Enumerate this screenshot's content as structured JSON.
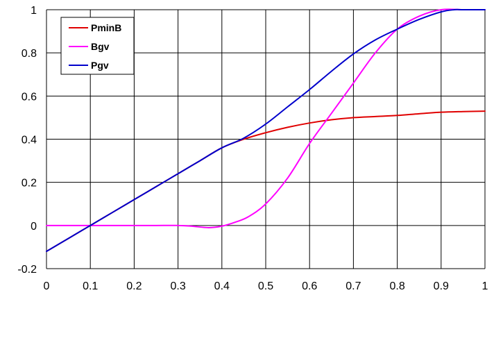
{
  "chart_data": {
    "type": "line",
    "title": "",
    "xlabel": "",
    "ylabel": "",
    "xlim": [
      0,
      1
    ],
    "ylim": [
      -0.2,
      1
    ],
    "grid": true,
    "legend_position": "top-left",
    "x_ticks": [
      "0",
      "0.1",
      "0.2",
      "0.3",
      "0.4",
      "0.5",
      "0.6",
      "0.7",
      "0.8",
      "0.9",
      "1"
    ],
    "y_ticks": [
      "-0.2",
      "0",
      "0.2",
      "0.4",
      "0.6",
      "0.8",
      "1"
    ],
    "series": [
      {
        "name": "PminB",
        "color": "#e00000",
        "x": [
          0,
          0.05,
          0.1,
          0.15,
          0.2,
          0.25,
          0.3,
          0.35,
          0.4,
          0.45,
          0.5,
          0.55,
          0.6,
          0.65,
          0.7,
          0.75,
          0.8,
          0.85,
          0.9,
          0.95,
          1.0
        ],
        "y": [
          -0.12,
          -0.06,
          0.0,
          0.06,
          0.12,
          0.18,
          0.24,
          0.3,
          0.36,
          0.4,
          0.43,
          0.455,
          0.475,
          0.49,
          0.5,
          0.505,
          0.51,
          0.518,
          0.525,
          0.528,
          0.53
        ]
      },
      {
        "name": "Bgv",
        "color": "#ff00ff",
        "x": [
          0,
          0.05,
          0.1,
          0.15,
          0.2,
          0.25,
          0.3,
          0.33,
          0.37,
          0.4,
          0.43,
          0.46,
          0.5,
          0.55,
          0.6,
          0.65,
          0.7,
          0.75,
          0.8,
          0.85,
          0.9,
          0.95,
          1.0
        ],
        "y": [
          0,
          0,
          0,
          0,
          0,
          0,
          0,
          -0.003,
          -0.01,
          -0.003,
          0.015,
          0.04,
          0.1,
          0.22,
          0.38,
          0.52,
          0.66,
          0.8,
          0.91,
          0.97,
          1.0,
          1.0,
          1.0
        ]
      },
      {
        "name": "Pgv",
        "color": "#0000cc",
        "x": [
          0,
          0.05,
          0.1,
          0.15,
          0.2,
          0.25,
          0.3,
          0.35,
          0.4,
          0.45,
          0.5,
          0.55,
          0.6,
          0.65,
          0.7,
          0.75,
          0.8,
          0.85,
          0.9,
          0.93,
          0.95,
          1.0
        ],
        "y": [
          -0.12,
          -0.06,
          0.0,
          0.06,
          0.12,
          0.18,
          0.24,
          0.3,
          0.36,
          0.405,
          0.47,
          0.55,
          0.63,
          0.715,
          0.795,
          0.86,
          0.91,
          0.955,
          0.99,
          1.0,
          1.0,
          1.0
        ]
      }
    ]
  }
}
